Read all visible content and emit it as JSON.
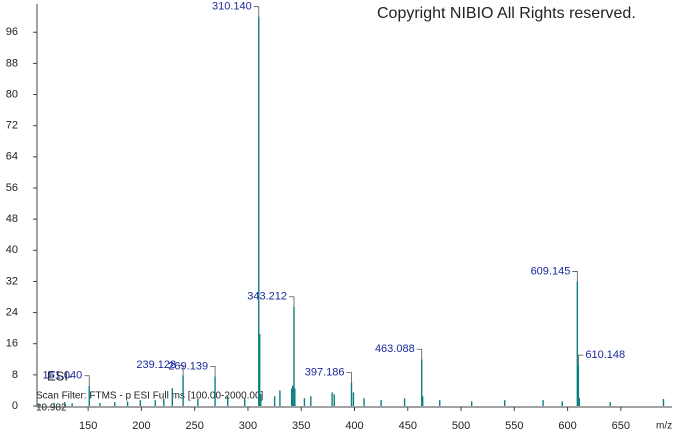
{
  "chart_data": {
    "type": "stick",
    "watermark": "Copyright NIBIO All Rights reserved.",
    "ionization": "ESI-",
    "scan_filter": "Scan Filter: FTMS - p ESI Full ms [100.00-2000.00]",
    "retention_time": "10.982",
    "x_label": "m/z",
    "color": "#0e7f7f",
    "label_color": "#1a2a9a",
    "xlim": [
      102,
      698
    ],
    "xticks": [
      150,
      200,
      250,
      300,
      350,
      400,
      450,
      500,
      550,
      600,
      650
    ],
    "ylim": [
      0,
      103
    ],
    "yticks": [
      0,
      8,
      16,
      24,
      32,
      40,
      48,
      56,
      64,
      72,
      80,
      88,
      96
    ],
    "x": [
      105,
      118,
      128,
      135,
      151.04,
      161,
      175,
      187,
      199,
      213,
      221,
      229,
      239.128,
      253,
      269.139,
      281,
      297,
      310.14,
      311,
      312,
      325,
      330,
      341,
      342,
      343.212,
      344,
      353,
      359,
      379,
      381,
      397.186,
      399,
      409,
      425,
      447,
      463.088,
      464,
      480,
      510,
      541,
      577,
      595,
      609.145,
      610.148,
      611,
      640,
      690
    ],
    "values": [
      0.5,
      0.8,
      1.0,
      0.7,
      5.2,
      0.8,
      1.0,
      1.2,
      1.5,
      1.5,
      1.8,
      4.6,
      7.9,
      1.8,
      7.6,
      2.5,
      2.0,
      100,
      18.5,
      3,
      2.5,
      4,
      4.5,
      5.2,
      25.5,
      4.5,
      2,
      2.5,
      3.5,
      3,
      6,
      3.5,
      2,
      1.5,
      2,
      12,
      2.5,
      1.5,
      1.2,
      1.5,
      1.5,
      1.2,
      32,
      10.5,
      2,
      1,
      1.8
    ],
    "x_labels": [
      null,
      null,
      null,
      null,
      "151.040",
      null,
      null,
      null,
      null,
      null,
      null,
      null,
      "239.128",
      null,
      "269.139",
      null,
      null,
      "310.140",
      null,
      null,
      null,
      null,
      null,
      null,
      "343.212",
      null,
      null,
      null,
      null,
      null,
      "397.186",
      null,
      null,
      null,
      null,
      "463.088",
      null,
      null,
      null,
      null,
      null,
      null,
      "609.145",
      "610.148",
      null,
      null,
      null
    ]
  }
}
